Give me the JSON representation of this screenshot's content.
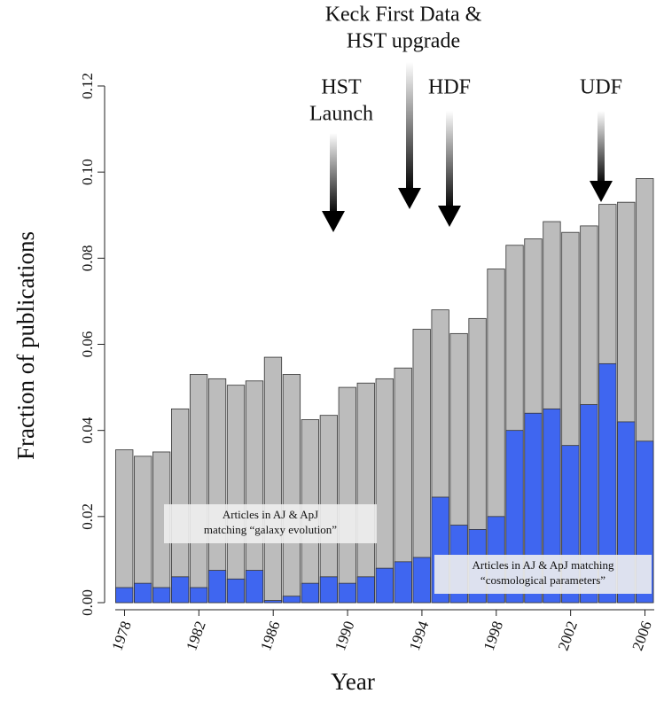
{
  "chart_data": {
    "type": "bar",
    "ylabel": "Fraction of publications",
    "xlabel": "Year",
    "categories": [
      "1978",
      null,
      null,
      null,
      "1982",
      null,
      null,
      null,
      "1986",
      null,
      null,
      null,
      "1990",
      null,
      null,
      null,
      "1994",
      null,
      null,
      null,
      "1998",
      null,
      null,
      null,
      "2002",
      null,
      null,
      null,
      "2006"
    ],
    "series": [
      {
        "name": "Articles in AJ & ApJ matching “galaxy evolution”",
        "color": "#bcbcbc",
        "values": [
          0.0355,
          0.034,
          0.035,
          0.045,
          0.053,
          0.052,
          0.0505,
          0.0515,
          0.057,
          0.053,
          0.0425,
          0.0435,
          0.05,
          0.051,
          0.052,
          0.0545,
          0.0635,
          0.068,
          0.0625,
          0.066,
          0.0775,
          0.083,
          0.0845,
          0.0885,
          0.086,
          0.0875,
          0.0925,
          0.093,
          0.0985
        ]
      },
      {
        "name": "Articles in AJ & ApJ matching “cosmological parameters”",
        "color": "#3f66f0",
        "values": [
          0.0035,
          0.0045,
          0.0035,
          0.006,
          0.0035,
          0.0075,
          0.0055,
          0.0075,
          0.0005,
          0.0015,
          0.0045,
          0.006,
          0.0045,
          0.006,
          0.008,
          0.0095,
          0.0105,
          0.0245,
          0.018,
          0.017,
          0.02,
          0.04,
          0.044,
          0.045,
          0.0365,
          0.046,
          0.0555,
          0.042,
          0.0375
        ]
      }
    ],
    "ylim": [
      0,
      0.12
    ],
    "yticks": [
      {
        "value": 0,
        "label": "0.00"
      },
      {
        "value": 0.02,
        "label": "0.02"
      },
      {
        "value": 0.04,
        "label": "0.04"
      },
      {
        "value": 0.06,
        "label": "0.06"
      },
      {
        "value": 0.08,
        "label": "0.08"
      },
      {
        "value": 0.1,
        "label": "0.10"
      },
      {
        "value": 0.12,
        "label": "0.12"
      }
    ],
    "annotations": [
      {
        "lines": [
          "HST",
          "Launch"
        ]
      },
      {
        "lines": [
          "Keck First Data &",
          "HST upgrade"
        ]
      },
      {
        "lines": [
          "HDF"
        ]
      },
      {
        "lines": [
          "UDF"
        ]
      }
    ]
  }
}
